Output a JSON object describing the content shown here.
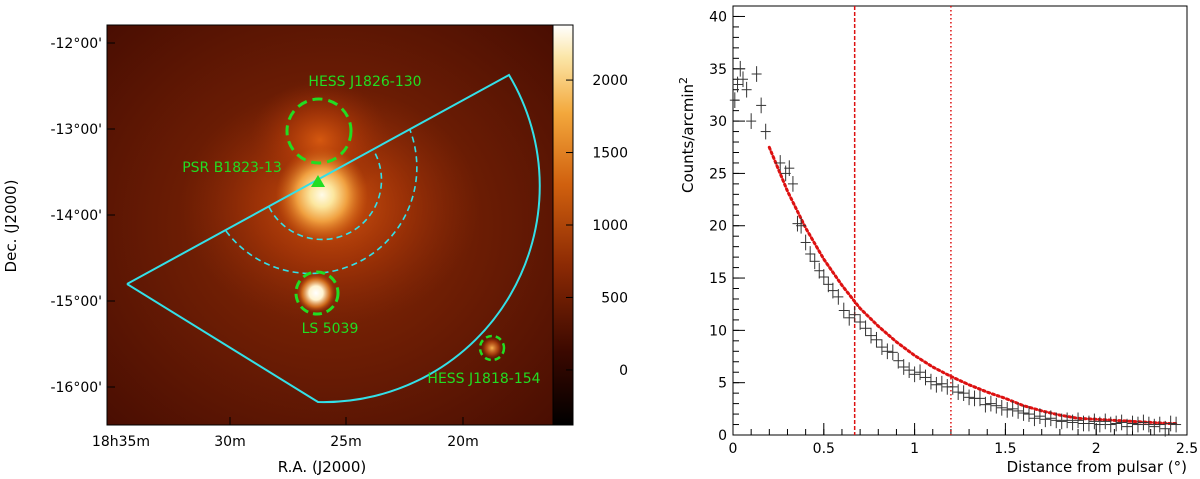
{
  "chart_data": [
    {
      "type": "heatmap",
      "title": "",
      "xlabel": "R.A. (J2000)",
      "ylabel": "Dec. (J2000)",
      "x_ticks": [
        "18h35m",
        "30m",
        "25m",
        "20m"
      ],
      "y_ticks": [
        "-12°00'",
        "-13°00'",
        "-14°00'",
        "-15°00'",
        "-16°00'"
      ],
      "colorbar": {
        "range": [
          -380,
          2380
        ],
        "ticks": [
          0,
          500,
          1000,
          1500,
          2000
        ],
        "tick_labels": [
          "0",
          "500",
          "1000",
          "1500",
          "2000"
        ]
      },
      "sources": [
        {
          "name": "HESS J1826-130",
          "ra": "18h26.2m",
          "dec": "-13°02'",
          "marker": "dashed-circle"
        },
        {
          "name": "PSR B1823-13",
          "ra": "18h26.2m",
          "dec": "-13°35'",
          "marker": "triangle"
        },
        {
          "name": "LS 5039",
          "ra": "18h26.2m",
          "dec": "-14°50'",
          "marker": "dashed-circle"
        },
        {
          "name": "HESS J1818-154",
          "ra": "18h18.0m",
          "dec": "-15°28'",
          "marker": "dashed-circle"
        }
      ],
      "annotation_color": "#22dd22",
      "region_color": "#33e0e8"
    },
    {
      "type": "scatter",
      "title": "",
      "xlabel": "Distance from pulsar (°)",
      "ylabel": "Counts/arcmin",
      "ylabel_superscript": "2",
      "xlim": [
        0,
        2.5
      ],
      "ylim": [
        0,
        41
      ],
      "x_ticks": [
        0,
        0.5,
        1,
        1.5,
        2,
        2.5
      ],
      "x_tick_labels": [
        "0",
        "0.5",
        "1",
        "1.5",
        "2",
        "2.5"
      ],
      "y_ticks": [
        0,
        5,
        10,
        15,
        20,
        25,
        30,
        35,
        40
      ],
      "y_tick_labels": [
        "0",
        "5",
        "10",
        "15",
        "20",
        "25",
        "30",
        "35",
        "40"
      ],
      "grid": false,
      "points": {
        "x": [
          0.01,
          0.025,
          0.04,
          0.055,
          0.075,
          0.1,
          0.13,
          0.155,
          0.18,
          0.26,
          0.29,
          0.31,
          0.33,
          0.355,
          0.375,
          0.4,
          0.425,
          0.45,
          0.475,
          0.5,
          0.525,
          0.55,
          0.58,
          0.61,
          0.64,
          0.67,
          0.7,
          0.73,
          0.76,
          0.79,
          0.82,
          0.85,
          0.88,
          0.91,
          0.94,
          0.97,
          1.0,
          1.03,
          1.06,
          1.09,
          1.12,
          1.15,
          1.18,
          1.21,
          1.24,
          1.27,
          1.3,
          1.33,
          1.36,
          1.39,
          1.42,
          1.45,
          1.48,
          1.51,
          1.54,
          1.57,
          1.6,
          1.63,
          1.66,
          1.69,
          1.72,
          1.75,
          1.78,
          1.81,
          1.84,
          1.87,
          1.9,
          1.93,
          1.96,
          1.99,
          2.02,
          2.05,
          2.08,
          2.11,
          2.14,
          2.17,
          2.2,
          2.23,
          2.26,
          2.29,
          2.32,
          2.35,
          2.38,
          2.41,
          2.44
        ],
        "y": [
          32,
          33.5,
          35,
          34,
          33,
          30,
          34.5,
          31.5,
          29,
          26,
          25,
          25.5,
          24,
          20.2,
          20,
          18.4,
          17.3,
          16.6,
          15.7,
          15.1,
          14.4,
          13.8,
          13.2,
          11.9,
          11.2,
          11.5,
          10.8,
          10.2,
          9.5,
          9.1,
          8.4,
          8.0,
          7.9,
          7.1,
          6.5,
          6.2,
          5.8,
          6.0,
          5.5,
          5.1,
          4.8,
          4.9,
          4.6,
          4.6,
          4.1,
          4.0,
          3.6,
          3.5,
          3.5,
          2.9,
          3.0,
          2.8,
          2.6,
          2.4,
          2.5,
          2.3,
          2.1,
          2.0,
          1.6,
          1.8,
          1.5,
          1.6,
          1.4,
          1.3,
          1.4,
          1.2,
          1.4,
          1.1,
          1.1,
          1.3,
          1.0,
          1.3,
          1.0,
          1.1,
          1.2,
          0.8,
          1.1,
          1.0,
          1.2,
          1.0,
          0.8,
          1.0,
          0.6,
          1.1,
          1.0
        ],
        "y_error": 0.75
      },
      "fit_curve": {
        "style": "dotted",
        "color": "#dd1111",
        "x": [
          0.2,
          0.3,
          0.4,
          0.5,
          0.6,
          0.7,
          0.8,
          0.9,
          1.0,
          1.1,
          1.2,
          1.3,
          1.4,
          1.5,
          1.6,
          1.7,
          1.8,
          1.9,
          2.0,
          2.1,
          2.2,
          2.3,
          2.4,
          2.45
        ],
        "y": [
          27.5,
          23.3,
          19.8,
          16.8,
          14.3,
          12.1,
          10.4,
          8.9,
          7.6,
          6.5,
          5.6,
          4.8,
          4.1,
          3.5,
          2.8,
          2.3,
          1.9,
          1.6,
          1.5,
          1.4,
          1.3,
          1.2,
          1.1,
          1.1
        ]
      },
      "vertical_lines": [
        {
          "x": 0.67,
          "style": "dashed",
          "color": "#dd1111"
        },
        {
          "x": 1.2,
          "style": "dotted",
          "color": "#dd1111"
        }
      ]
    }
  ]
}
